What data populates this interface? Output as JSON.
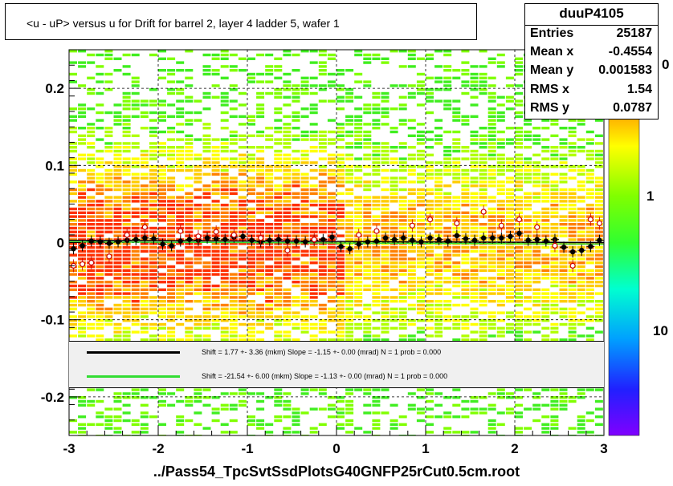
{
  "title": "<u - uP>       versus   u for Drift for barrel 2, layer 4 ladder 5, wafer 1",
  "stats": {
    "name": "duuP4105",
    "rows": [
      {
        "label": "Entries",
        "value": "25187"
      },
      {
        "label": "Mean x",
        "value": "-0.4554"
      },
      {
        "label": "Mean y",
        "value": "0.001583"
      },
      {
        "label": "RMS x",
        "value": "1.54"
      },
      {
        "label": "RMS y",
        "value": "0.0787"
      }
    ]
  },
  "fits": [
    {
      "color": "#000000",
      "text": "Shift =     1.77 +- 3.36 (mkm) Slope =    -1.15 +- 0.00 (mrad)  N = 1 prob = 0.000"
    },
    {
      "color": "#33dd33",
      "text": "Shift =   -21.54 +- 6.00 (mkm) Slope =    -1.13 +- 0.00 (mrad)  N = 1 prob = 0.000"
    }
  ],
  "footer": "../Pass54_TpcSvtSsdPlotsG40GNFP25rCut0.5cm.root",
  "colors": {
    "palette_top": "#ff0000",
    "palette_bottom": "#8000ff",
    "frame": "#000000"
  },
  "chart_data": {
    "type": "heatmap",
    "title": "<u - uP>       versus   u for Drift for barrel 2, layer 4 ladder 5, wafer 1",
    "xlim": [
      -3,
      3
    ],
    "ylim": [
      -0.25,
      0.25
    ],
    "x_ticks": [
      "-3",
      "-2",
      "-1",
      "0",
      "1",
      "2",
      "3"
    ],
    "y_ticks": [
      "-0.2",
      "-0.1",
      "0",
      "0.1",
      "0.2"
    ],
    "z_scale": "log",
    "z_ticks": [
      "1",
      "10"
    ],
    "z_tick_partial": "0",
    "grid": true,
    "profile_black": {
      "x": [
        -2.95,
        -2.85,
        -2.75,
        -2.65,
        -2.55,
        -2.45,
        -2.35,
        -2.25,
        -2.15,
        -2.05,
        -1.95,
        -1.85,
        -1.75,
        -1.65,
        -1.55,
        -1.45,
        -1.35,
        -1.25,
        -1.15,
        -1.05,
        -0.95,
        -0.85,
        -0.75,
        -0.65,
        -0.55,
        -0.45,
        -0.35,
        -0.25,
        -0.15,
        -0.05,
        0.05,
        0.15,
        0.25,
        0.35,
        0.45,
        0.55,
        0.65,
        0.75,
        0.85,
        0.95,
        1.05,
        1.15,
        1.25,
        1.35,
        1.45,
        1.55,
        1.65,
        1.75,
        1.85,
        1.95,
        2.05,
        2.15,
        2.25,
        2.35,
        2.45,
        2.55,
        2.65,
        2.75,
        2.85,
        2.95
      ],
      "y": [
        -0.008,
        -0.004,
        0.002,
        0.001,
        -0.001,
        0.001,
        0.003,
        0.004,
        0.006,
        0.005,
        -0.002,
        -0.004,
        0.002,
        0.004,
        0.003,
        0.006,
        0.005,
        0.004,
        0.007,
        0.008,
        0.003,
        0.001,
        0.003,
        0.004,
        0.002,
        0.002,
        0.001,
        0.003,
        0.004,
        0.007,
        -0.005,
        -0.008,
        -0.002,
        0.001,
        0.002,
        0.006,
        0.004,
        0.006,
        0.003,
        0.001,
        0.006,
        0.004,
        0.002,
        0.009,
        0.005,
        0.003,
        0.006,
        0.006,
        0.006,
        0.008,
        0.012,
        0.003,
        0.004,
        0.002,
        0.004,
        -0.006,
        -0.012,
        -0.01,
        -0.005,
        0.003
      ]
    },
    "profile_open": {
      "x": [
        -2.95,
        -2.85,
        -2.75,
        -2.55,
        -2.35,
        -2.15,
        -1.75,
        -1.55,
        -1.35,
        -1.15,
        -0.85,
        -0.55,
        -0.25,
        0.25,
        0.45,
        0.85,
        1.05,
        1.35,
        1.65,
        1.85,
        2.05,
        2.25,
        2.45,
        2.65,
        2.85,
        2.95
      ],
      "y": [
        -0.03,
        -0.028,
        -0.026,
        -0.018,
        0.01,
        0.02,
        0.015,
        0.008,
        0.014,
        0.01,
        0.006,
        -0.01,
        0.004,
        0.01,
        0.015,
        0.022,
        0.03,
        0.025,
        0.04,
        0.022,
        0.03,
        0.02,
        -0.004,
        -0.03,
        0.03,
        0.025
      ]
    }
  }
}
